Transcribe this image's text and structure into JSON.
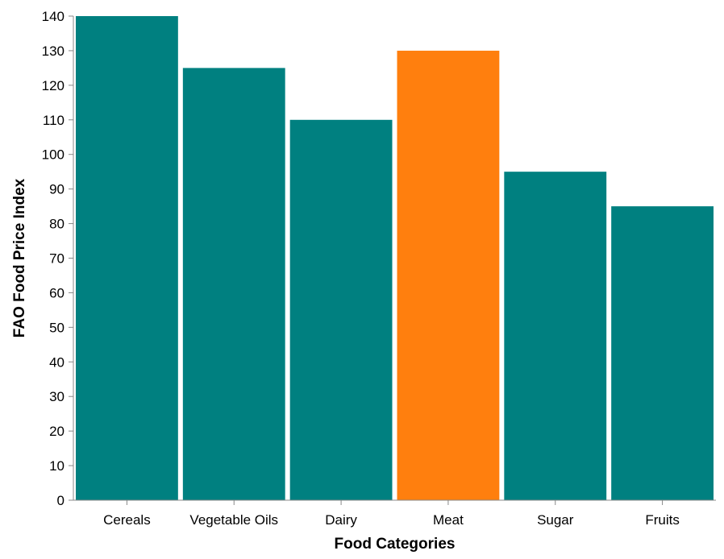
{
  "chart_data": {
    "type": "bar",
    "categories": [
      "Cereals",
      "Vegetable Oils",
      "Dairy",
      "Meat",
      "Sugar",
      "Fruits"
    ],
    "values": [
      140,
      125,
      110,
      130,
      95,
      85
    ],
    "highlight_category": "Meat",
    "colors": {
      "default": "#008080",
      "highlight": "#ff7f0e"
    },
    "xlabel": "Food Categories",
    "ylabel": "FAO Food Price Index",
    "ylim": [
      0,
      140
    ],
    "yticks": [
      0,
      10,
      20,
      30,
      40,
      50,
      60,
      70,
      80,
      90,
      100,
      110,
      120,
      130,
      140
    ],
    "grid": false,
    "legend": "none"
  }
}
